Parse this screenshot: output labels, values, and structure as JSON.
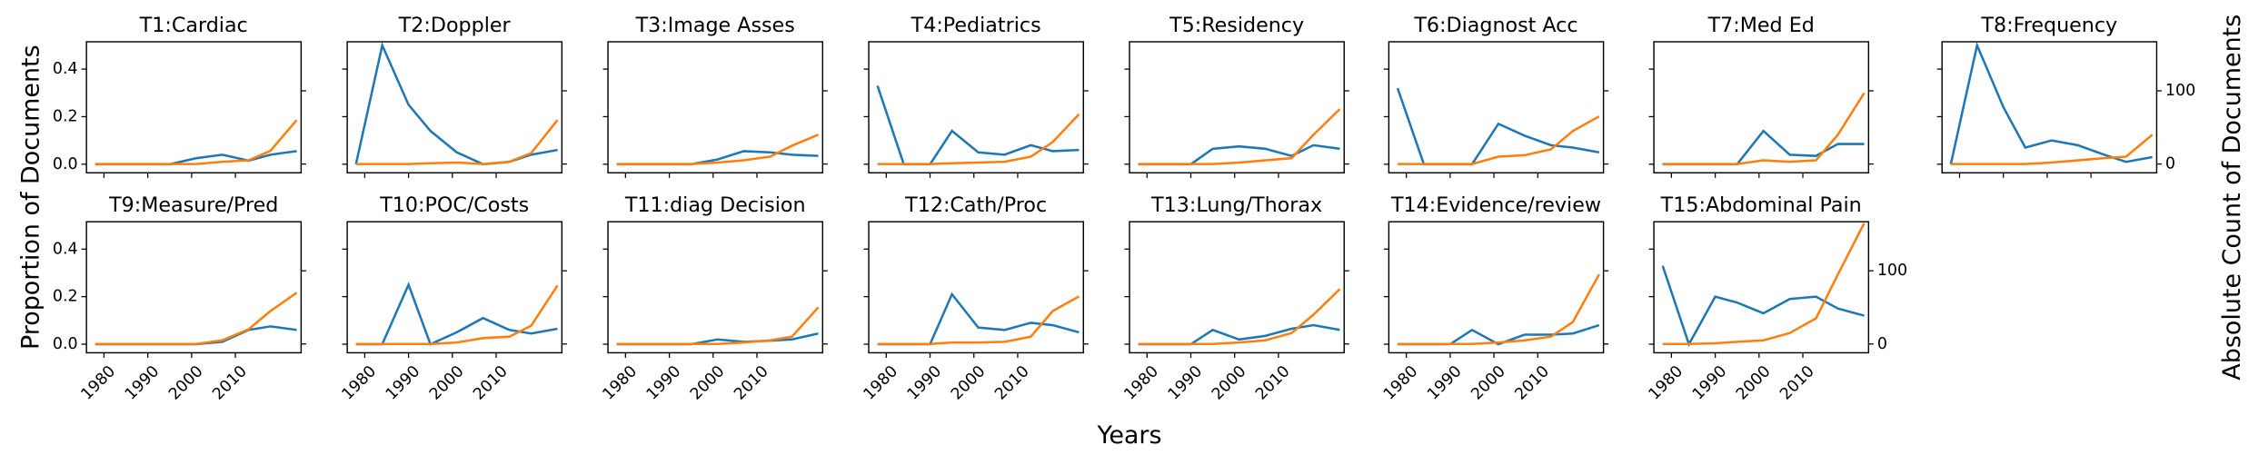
{
  "figure": {
    "xlabel": "Years",
    "ylabel": "Proportion of Documents",
    "y2label": "Absolute Count of Documents"
  },
  "chart_data": [
    {
      "type": "line",
      "title": "T1:Cardiac",
      "x": [
        1978,
        1984,
        1990,
        1995,
        2001,
        2007,
        2013,
        2018,
        2024
      ],
      "xlim": [
        1976,
        2025
      ],
      "xticks": [
        1980,
        1990,
        2000,
        2010
      ],
      "ylim": [
        -0.036,
        0.515
      ],
      "yticks": [
        {
          "value": 0,
          "label": "0.0"
        },
        {
          "value": 0.2,
          "label": "0.2"
        },
        {
          "value": 0.4,
          "label": "0.4"
        }
      ],
      "y2lim": [
        -12,
        167
      ],
      "y2ticks": [
        0,
        100
      ],
      "series": [
        {
          "color": "#1f77b4",
          "values": [
            0,
            0,
            0,
            0,
            0.025,
            0.04,
            0.015,
            0.04,
            0.055
          ]
        },
        {
          "color": "#ff7f0e",
          "axis": "y2",
          "values": [
            0,
            0,
            0,
            0,
            0,
            3,
            5,
            18,
            60
          ]
        }
      ]
    },
    {
      "type": "line",
      "title": "T2:Doppler",
      "x": [
        1978,
        1984,
        1990,
        1995,
        2001,
        2007,
        2013,
        2018,
        2024
      ],
      "xlim": [
        1976,
        2025
      ],
      "xticks": [
        1980,
        1990,
        2000,
        2010
      ],
      "ylim": [
        -0.036,
        0.515
      ],
      "yticks": [
        0,
        0.2,
        0.4
      ],
      "y2lim": [
        -12,
        167
      ],
      "y2ticks": [
        0,
        100
      ],
      "series": [
        {
          "color": "#1f77b4",
          "values": [
            0,
            0.5,
            0.25,
            0.14,
            0.05,
            0,
            0.01,
            0.04,
            0.06
          ]
        },
        {
          "color": "#ff7f0e",
          "axis": "y2",
          "values": [
            0,
            0,
            0,
            1,
            2,
            0,
            3,
            15,
            60
          ]
        }
      ]
    },
    {
      "type": "line",
      "title": "T3:Image Asses",
      "x": [
        1978,
        1984,
        1990,
        1995,
        2001,
        2007,
        2013,
        2018,
        2024
      ],
      "xlim": [
        1976,
        2025
      ],
      "xticks": [
        1980,
        1990,
        2000,
        2010
      ],
      "ylim": [
        -0.036,
        0.515
      ],
      "yticks": [
        0,
        0.2,
        0.4
      ],
      "y2lim": [
        -12,
        167
      ],
      "y2ticks": [
        0,
        100
      ],
      "series": [
        {
          "color": "#1f77b4",
          "values": [
            0,
            0,
            0,
            0,
            0.02,
            0.055,
            0.05,
            0.04,
            0.035
          ]
        },
        {
          "color": "#ff7f0e",
          "axis": "y2",
          "values": [
            0,
            0,
            0,
            0,
            2,
            5,
            10,
            25,
            40
          ]
        }
      ]
    },
    {
      "type": "line",
      "title": "T4:Pediatrics",
      "x": [
        1978,
        1984,
        1990,
        1995,
        2001,
        2007,
        2013,
        2018,
        2024
      ],
      "xlim": [
        1976,
        2025
      ],
      "xticks": [
        1980,
        1990,
        2000,
        2010
      ],
      "ylim": [
        -0.036,
        0.515
      ],
      "yticks": [
        0,
        0.2,
        0.4
      ],
      "y2lim": [
        -12,
        167
      ],
      "y2ticks": [
        0,
        100
      ],
      "series": [
        {
          "color": "#1f77b4",
          "values": [
            0.33,
            0,
            0,
            0.14,
            0.05,
            0.04,
            0.08,
            0.055,
            0.06
          ]
        },
        {
          "color": "#ff7f0e",
          "axis": "y2",
          "values": [
            0,
            0,
            0,
            1,
            2,
            3,
            10,
            30,
            68
          ]
        }
      ]
    },
    {
      "type": "line",
      "title": "T5:Residency",
      "x": [
        1978,
        1984,
        1990,
        1995,
        2001,
        2007,
        2013,
        2018,
        2024
      ],
      "xlim": [
        1976,
        2025
      ],
      "xticks": [
        1980,
        1990,
        2000,
        2010
      ],
      "ylim": [
        -0.036,
        0.515
      ],
      "yticks": [
        0,
        0.2,
        0.4
      ],
      "y2lim": [
        -12,
        167
      ],
      "y2ticks": [
        0,
        100
      ],
      "series": [
        {
          "color": "#1f77b4",
          "values": [
            0,
            0,
            0,
            0.065,
            0.075,
            0.065,
            0.035,
            0.08,
            0.065
          ]
        },
        {
          "color": "#ff7f0e",
          "axis": "y2",
          "values": [
            0,
            0,
            0,
            0,
            2,
            5,
            8,
            40,
            75
          ]
        }
      ]
    },
    {
      "type": "line",
      "title": "T6:Diagnost Acc",
      "x": [
        1978,
        1984,
        1990,
        1995,
        2001,
        2007,
        2013,
        2018,
        2024
      ],
      "xlim": [
        1976,
        2025
      ],
      "xticks": [
        1980,
        1990,
        2000,
        2010
      ],
      "ylim": [
        -0.036,
        0.515
      ],
      "yticks": [
        0,
        0.2,
        0.4
      ],
      "y2lim": [
        -12,
        167
      ],
      "y2ticks": [
        0,
        100
      ],
      "series": [
        {
          "color": "#1f77b4",
          "values": [
            0.32,
            0,
            0,
            0,
            0.17,
            0.12,
            0.08,
            0.07,
            0.05
          ]
        },
        {
          "color": "#ff7f0e",
          "axis": "y2",
          "values": [
            0,
            0,
            0,
            0,
            10,
            12,
            20,
            45,
            65
          ]
        }
      ]
    },
    {
      "type": "line",
      "title": "T7:Med Ed",
      "x": [
        1978,
        1984,
        1990,
        1995,
        2001,
        2007,
        2013,
        2018,
        2024
      ],
      "xlim": [
        1976,
        2025
      ],
      "xticks": [
        1980,
        1990,
        2000,
        2010
      ],
      "ylim": [
        -0.036,
        0.515
      ],
      "yticks": [
        0,
        0.2,
        0.4
      ],
      "y2lim": [
        -12,
        167
      ],
      "y2ticks": [
        0,
        100
      ],
      "series": [
        {
          "color": "#1f77b4",
          "values": [
            0,
            0,
            0,
            0,
            0.14,
            0.04,
            0.035,
            0.085,
            0.085
          ]
        },
        {
          "color": "#ff7f0e",
          "axis": "y2",
          "values": [
            0,
            0,
            0,
            0,
            5,
            3,
            5,
            40,
            97
          ]
        }
      ]
    },
    {
      "type": "line",
      "title": "T8:Frequency",
      "x": [
        1978,
        1984,
        1990,
        1995,
        2001,
        2007,
        2013,
        2018,
        2024
      ],
      "xlim": [
        1976,
        2025
      ],
      "xticks": [
        1980,
        1990,
        2000,
        2010
      ],
      "ylim": [
        -0.036,
        0.515
      ],
      "yticks": [
        0,
        0.2,
        0.4
      ],
      "y2lim": [
        -12,
        167
      ],
      "y2ticks": [
        0,
        100
      ],
      "series": [
        {
          "color": "#1f77b4",
          "values": [
            0,
            0.5,
            0.24,
            0.07,
            0.1,
            0.08,
            0.04,
            0.01,
            0.03
          ]
        },
        {
          "color": "#ff7f0e",
          "axis": "y2",
          "values": [
            0,
            0,
            0,
            0,
            2,
            5,
            8,
            10,
            40
          ]
        }
      ]
    },
    {
      "type": "line",
      "title": "T9:Measure/Pred",
      "x": [
        1978,
        1984,
        1990,
        1995,
        2001,
        2007,
        2013,
        2018,
        2024
      ],
      "xlim": [
        1976,
        2025
      ],
      "xticks": [
        1980,
        1990,
        2000,
        2010
      ],
      "ylim": [
        -0.036,
        0.515
      ],
      "yticks": [
        {
          "value": 0,
          "label": "0.0"
        },
        {
          "value": 0.2,
          "label": "0.2"
        },
        {
          "value": 0.4,
          "label": "0.4"
        }
      ],
      "y2lim": [
        -12,
        167
      ],
      "y2ticks": [
        0,
        100
      ],
      "series": [
        {
          "color": "#1f77b4",
          "values": [
            0,
            0,
            0,
            0,
            0,
            0.01,
            0.06,
            0.075,
            0.06
          ]
        },
        {
          "color": "#ff7f0e",
          "axis": "y2",
          "values": [
            0,
            0,
            0,
            0,
            0,
            5,
            20,
            45,
            70
          ]
        }
      ]
    },
    {
      "type": "line",
      "title": "T10:POC/Costs",
      "x": [
        1978,
        1984,
        1990,
        1995,
        2001,
        2007,
        2013,
        2018,
        2024
      ],
      "xlim": [
        1976,
        2025
      ],
      "xticks": [
        1980,
        1990,
        2000,
        2010
      ],
      "ylim": [
        -0.036,
        0.515
      ],
      "yticks": [
        0,
        0.2,
        0.4
      ],
      "y2lim": [
        -12,
        167
      ],
      "y2ticks": [
        0,
        100
      ],
      "series": [
        {
          "color": "#1f77b4",
          "values": [
            0,
            0,
            0.25,
            0,
            0.05,
            0.11,
            0.06,
            0.045,
            0.065
          ]
        },
        {
          "color": "#ff7f0e",
          "axis": "y2",
          "values": [
            0,
            0,
            0,
            0,
            2,
            8,
            10,
            25,
            80
          ]
        }
      ]
    },
    {
      "type": "line",
      "title": "T11:diag Decision",
      "x": [
        1978,
        1984,
        1990,
        1995,
        2001,
        2007,
        2013,
        2018,
        2024
      ],
      "xlim": [
        1976,
        2025
      ],
      "xticks": [
        1980,
        1990,
        2000,
        2010
      ],
      "ylim": [
        -0.036,
        0.515
      ],
      "yticks": [
        0,
        0.2,
        0.4
      ],
      "y2lim": [
        -12,
        167
      ],
      "y2ticks": [
        0,
        100
      ],
      "series": [
        {
          "color": "#1f77b4",
          "values": [
            0,
            0,
            0,
            0,
            0.02,
            0.01,
            0.015,
            0.02,
            0.045
          ]
        },
        {
          "color": "#ff7f0e",
          "axis": "y2",
          "values": [
            0,
            0,
            0,
            0,
            0,
            2,
            5,
            10,
            50
          ]
        }
      ]
    },
    {
      "type": "line",
      "title": "T12:Cath/Proc",
      "x": [
        1978,
        1984,
        1990,
        1995,
        2001,
        2007,
        2013,
        2018,
        2024
      ],
      "xlim": [
        1976,
        2025
      ],
      "xticks": [
        1980,
        1990,
        2000,
        2010
      ],
      "ylim": [
        -0.036,
        0.515
      ],
      "yticks": [
        0,
        0.2,
        0.4
      ],
      "y2lim": [
        -12,
        167
      ],
      "y2ticks": [
        0,
        100
      ],
      "series": [
        {
          "color": "#1f77b4",
          "values": [
            0,
            0,
            0,
            0.21,
            0.07,
            0.06,
            0.09,
            0.08,
            0.05
          ]
        },
        {
          "color": "#ff7f0e",
          "axis": "y2",
          "values": [
            0,
            0,
            0,
            2,
            2,
            3,
            10,
            45,
            65
          ]
        }
      ]
    },
    {
      "type": "line",
      "title": "T13:Lung/Thorax",
      "x": [
        1978,
        1984,
        1990,
        1995,
        2001,
        2007,
        2013,
        2018,
        2024
      ],
      "xlim": [
        1976,
        2025
      ],
      "xticks": [
        1980,
        1990,
        2000,
        2010
      ],
      "ylim": [
        -0.036,
        0.515
      ],
      "yticks": [
        0,
        0.2,
        0.4
      ],
      "y2lim": [
        -12,
        167
      ],
      "y2ticks": [
        0,
        100
      ],
      "series": [
        {
          "color": "#1f77b4",
          "values": [
            0,
            0,
            0,
            0.06,
            0.02,
            0.035,
            0.065,
            0.08,
            0.06
          ]
        },
        {
          "color": "#ff7f0e",
          "axis": "y2",
          "values": [
            0,
            0,
            0,
            0,
            2,
            5,
            15,
            40,
            75
          ]
        }
      ]
    },
    {
      "type": "line",
      "title": "T14:Evidence/review",
      "x": [
        1978,
        1984,
        1990,
        1995,
        2001,
        2007,
        2013,
        2018,
        2024
      ],
      "xlim": [
        1976,
        2025
      ],
      "xticks": [
        1980,
        1990,
        2000,
        2010
      ],
      "ylim": [
        -0.036,
        0.515
      ],
      "yticks": [
        0,
        0.2,
        0.4
      ],
      "y2lim": [
        -12,
        167
      ],
      "y2ticks": [
        0,
        100
      ],
      "series": [
        {
          "color": "#1f77b4",
          "values": [
            0,
            0,
            0,
            0.06,
            0,
            0.04,
            0.04,
            0.045,
            0.08
          ]
        },
        {
          "color": "#ff7f0e",
          "axis": "y2",
          "values": [
            0,
            0,
            0,
            0,
            2,
            5,
            10,
            30,
            95
          ]
        }
      ]
    },
    {
      "type": "line",
      "title": "T15:Abdominal Pain",
      "x": [
        1978,
        1984,
        1990,
        1995,
        2001,
        2007,
        2013,
        2018,
        2024
      ],
      "xlim": [
        1976,
        2025
      ],
      "xticks": [
        1980,
        1990,
        2000,
        2010
      ],
      "ylim": [
        -0.036,
        0.515
      ],
      "yticks": [
        0,
        0.2,
        0.4
      ],
      "y2lim": [
        -12,
        167
      ],
      "y2ticks": [
        0,
        100
      ],
      "series": [
        {
          "color": "#1f77b4",
          "values": [
            0.33,
            0,
            0.2,
            0.175,
            0.13,
            0.19,
            0.2,
            0.15,
            0.12
          ]
        },
        {
          "color": "#ff7f0e",
          "axis": "y2",
          "values": [
            0,
            0,
            1,
            3,
            5,
            15,
            35,
            95,
            165
          ]
        }
      ]
    }
  ]
}
